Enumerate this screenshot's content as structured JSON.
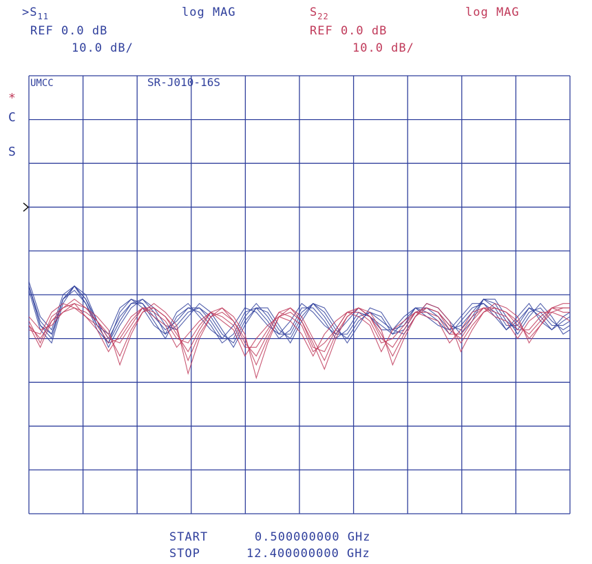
{
  "header": {
    "ch1_prefix": ">",
    "ch1_param": "S",
    "ch1_param_sub": "11",
    "ch1_format": "log MAG",
    "ch1_ref": "REF 0.0 dB",
    "ch1_scale": "10.0 dB/",
    "ch2_param": "S",
    "ch2_param_sub": "22",
    "ch2_format": "log MAG",
    "ch2_ref": "REF 0.0 dB",
    "ch2_scale": "10.0 dB/"
  },
  "side_marks": {
    "star": "*",
    "c": "C",
    "s": "S"
  },
  "footer": {
    "start_label": "START",
    "start_value": "0.500000000 GHz",
    "stop_label": "STOP",
    "stop_value": "12.400000000 GHz"
  },
  "chart_data": {
    "type": "line",
    "title_left": "UMCC",
    "title_right": "SR-J010-16S",
    "x_start_ghz": 0.5,
    "x_stop_ghz": 12.4,
    "x_divisions": 10,
    "y_divisions": 10,
    "ref_db": 0.0,
    "scale_db_per_div": 10.0,
    "ylim": [
      -70,
      30
    ],
    "grid": true,
    "colors": {
      "s11": "#2f3f9c",
      "s22": "#c03a5a",
      "grid": "#2f3f9c"
    },
    "x_ghz": [
      0.5,
      0.75,
      1.0,
      1.25,
      1.5,
      1.75,
      2.0,
      2.25,
      2.5,
      2.75,
      3.0,
      3.25,
      3.5,
      3.75,
      4.0,
      4.25,
      4.5,
      4.75,
      5.0,
      5.25,
      5.5,
      5.75,
      6.0,
      6.25,
      6.5,
      6.75,
      7.0,
      7.25,
      7.5,
      7.75,
      8.0,
      8.25,
      8.5,
      8.75,
      9.0,
      9.25,
      9.5,
      9.75,
      10.0,
      10.25,
      10.5,
      10.75,
      11.0,
      11.25,
      11.5,
      11.75,
      12.0,
      12.25,
      12.4
    ],
    "series": [
      {
        "param": "S11",
        "values": [
          -18,
          -27,
          -30,
          -21,
          -18,
          -21,
          -27,
          -31,
          -26,
          -22,
          -21,
          -24,
          -29,
          -27,
          -24,
          -23,
          -25,
          -29,
          -31,
          -26,
          -23,
          -24,
          -28,
          -30,
          -25,
          -22,
          -24,
          -28,
          -30,
          -26,
          -24,
          -25,
          -29,
          -28,
          -24,
          -23,
          -24,
          -27,
          -28,
          -25,
          -21,
          -22,
          -26,
          -28,
          -24,
          -23,
          -26,
          -28,
          -27
        ]
      },
      {
        "param": "S11",
        "values": [
          -19,
          -28,
          -31,
          -22,
          -18,
          -21,
          -26,
          -30,
          -25,
          -22,
          -22,
          -25,
          -28,
          -26,
          -23,
          -23,
          -26,
          -30,
          -30,
          -25,
          -22,
          -25,
          -29,
          -29,
          -24,
          -22,
          -25,
          -29,
          -29,
          -25,
          -24,
          -26,
          -28,
          -27,
          -23,
          -23,
          -25,
          -28,
          -27,
          -24,
          -21,
          -23,
          -27,
          -27,
          -23,
          -24,
          -27,
          -27,
          -26
        ]
      },
      {
        "param": "S11",
        "values": [
          -18,
          -26,
          -29,
          -21,
          -19,
          -22,
          -28,
          -31,
          -24,
          -21,
          -22,
          -26,
          -30,
          -25,
          -23,
          -24,
          -27,
          -31,
          -29,
          -24,
          -23,
          -26,
          -30,
          -28,
          -23,
          -23,
          -26,
          -30,
          -28,
          -24,
          -25,
          -27,
          -29,
          -26,
          -23,
          -24,
          -26,
          -29,
          -26,
          -23,
          -22,
          -24,
          -28,
          -26,
          -23,
          -25,
          -28,
          -26,
          -25
        ]
      },
      {
        "param": "S11",
        "values": [
          -17,
          -25,
          -28,
          -20,
          -18,
          -22,
          -27,
          -29,
          -23,
          -21,
          -23,
          -27,
          -29,
          -24,
          -22,
          -25,
          -28,
          -30,
          -27,
          -23,
          -24,
          -27,
          -29,
          -26,
          -22,
          -24,
          -27,
          -29,
          -26,
          -23,
          -25,
          -28,
          -28,
          -25,
          -23,
          -25,
          -27,
          -28,
          -25,
          -22,
          -22,
          -25,
          -28,
          -25,
          -22,
          -26,
          -28,
          -25,
          -24
        ]
      },
      {
        "param": "S11",
        "values": [
          -18,
          -27,
          -29,
          -21,
          -18,
          -20,
          -26,
          -32,
          -27,
          -23,
          -21,
          -23,
          -27,
          -28,
          -25,
          -22,
          -24,
          -28,
          -32,
          -27,
          -23,
          -23,
          -27,
          -31,
          -26,
          -22,
          -23,
          -27,
          -31,
          -27,
          -23,
          -24,
          -28,
          -29,
          -25,
          -22,
          -23,
          -26,
          -29,
          -26,
          -21,
          -21,
          -25,
          -29,
          -25,
          -22,
          -25,
          -29,
          -28
        ]
      },
      {
        "param": "S22",
        "values": [
          -27,
          -30,
          -26,
          -24,
          -23,
          -24,
          -26,
          -29,
          -34,
          -28,
          -24,
          -23,
          -25,
          -28,
          -35,
          -29,
          -25,
          -24,
          -26,
          -30,
          -36,
          -30,
          -25,
          -24,
          -26,
          -31,
          -37,
          -30,
          -25,
          -23,
          -25,
          -29,
          -34,
          -29,
          -25,
          -23,
          -24,
          -27,
          -31,
          -27,
          -24,
          -23,
          -24,
          -26,
          -30,
          -27,
          -24,
          -23,
          -23
        ]
      },
      {
        "param": "S22",
        "values": [
          -26,
          -31,
          -25,
          -23,
          -22,
          -25,
          -27,
          -31,
          -30,
          -26,
          -23,
          -24,
          -26,
          -30,
          -31,
          -27,
          -24,
          -25,
          -27,
          -32,
          -32,
          -28,
          -24,
          -25,
          -27,
          -33,
          -31,
          -28,
          -24,
          -24,
          -26,
          -31,
          -30,
          -27,
          -24,
          -24,
          -25,
          -29,
          -29,
          -25,
          -23,
          -24,
          -25,
          -28,
          -28,
          -25,
          -23,
          -24,
          -24
        ]
      },
      {
        "param": "S22",
        "values": [
          -28,
          -29,
          -24,
          -22,
          -23,
          -25,
          -28,
          -33,
          -29,
          -25,
          -23,
          -25,
          -27,
          -32,
          -29,
          -26,
          -24,
          -26,
          -28,
          -34,
          -30,
          -27,
          -25,
          -26,
          -29,
          -34,
          -29,
          -26,
          -24,
          -25,
          -27,
          -33,
          -28,
          -26,
          -24,
          -25,
          -26,
          -31,
          -28,
          -24,
          -23,
          -25,
          -26,
          -30,
          -26,
          -24,
          -24,
          -25,
          -26
        ]
      },
      {
        "param": "S22",
        "values": [
          -25,
          -28,
          -27,
          -24,
          -22,
          -23,
          -25,
          -28,
          -36,
          -29,
          -24,
          -22,
          -24,
          -27,
          -38,
          -30,
          -25,
          -23,
          -25,
          -29,
          -39,
          -31,
          -25,
          -23,
          -25,
          -30,
          -35,
          -29,
          -25,
          -23,
          -24,
          -28,
          -36,
          -30,
          -25,
          -22,
          -23,
          -26,
          -33,
          -28,
          -24,
          -22,
          -23,
          -25,
          -31,
          -27,
          -23,
          -22,
          -22
        ]
      },
      {
        "param": "S22",
        "values": [
          -27,
          -32,
          -26,
          -23,
          -21,
          -23,
          -26,
          -30,
          -31,
          -27,
          -23,
          -23,
          -25,
          -29,
          -33,
          -28,
          -24,
          -23,
          -26,
          -31,
          -34,
          -29,
          -24,
          -23,
          -26,
          -32,
          -33,
          -28,
          -24,
          -23,
          -25,
          -30,
          -32,
          -28,
          -24,
          -23,
          -24,
          -28,
          -30,
          -26,
          -23,
          -23,
          -24,
          -27,
          -29,
          -26,
          -23,
          -23,
          -23
        ]
      }
    ]
  }
}
